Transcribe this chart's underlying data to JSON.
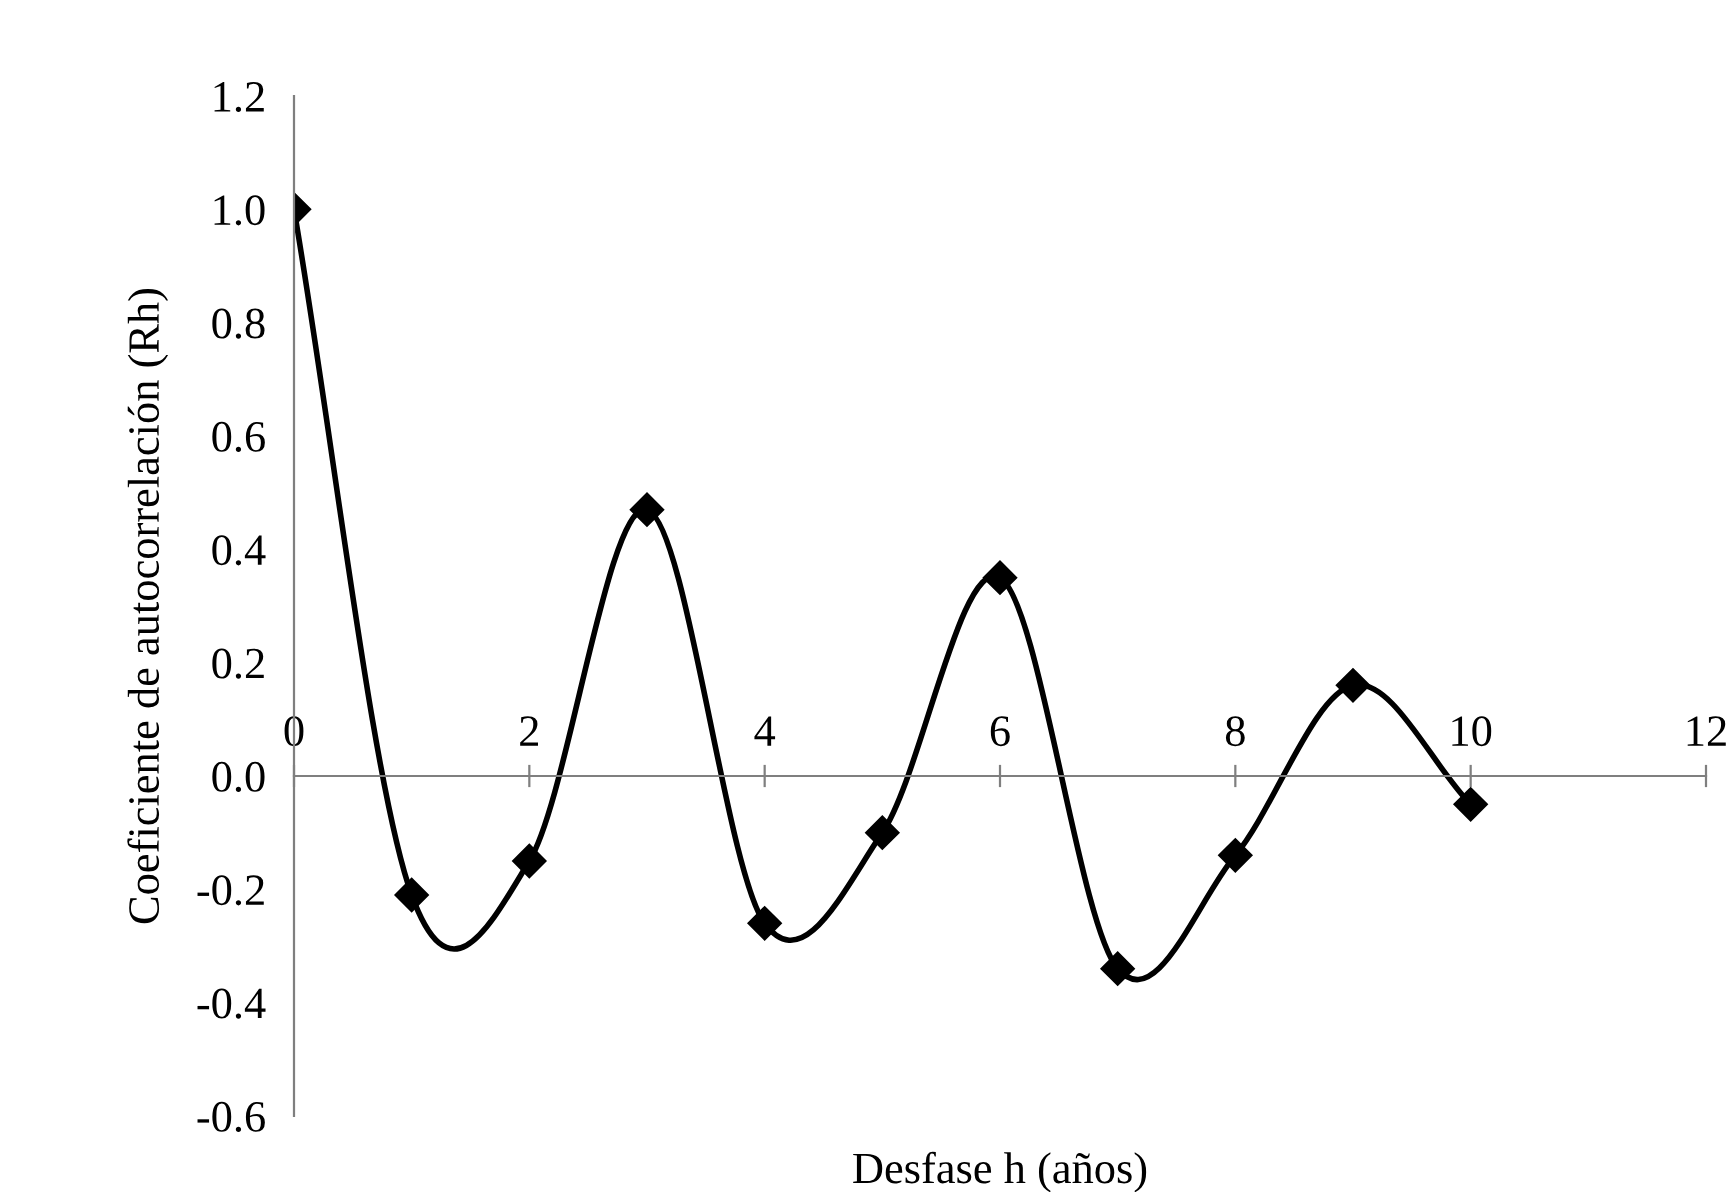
{
  "chart_data": {
    "type": "line",
    "xlabel": "Desfase h (años)",
    "ylabel": "Coeficiente de autocorrelación (Rh)",
    "x": [
      0,
      1,
      2,
      3,
      4,
      5,
      6,
      7,
      8,
      9,
      10
    ],
    "series": [
      {
        "color": "#000000",
        "values": [
          1.0,
          -0.21,
          -0.15,
          0.47,
          -0.26,
          -0.1,
          0.35,
          -0.34,
          -0.14,
          0.16,
          -0.05
        ]
      }
    ],
    "xlim": [
      0,
      12
    ],
    "xticks": [
      0,
      2,
      4,
      6,
      8,
      10,
      12
    ],
    "ylim": [
      -0.6,
      1.2
    ],
    "yticks": [
      {
        "value": -0.6,
        "label": "-0.6"
      },
      {
        "value": -0.4,
        "label": "-0.4"
      },
      {
        "value": -0.2,
        "label": "-0.2"
      },
      {
        "value": 0.0,
        "label": "0.0"
      },
      {
        "value": 0.2,
        "label": "0.2"
      },
      {
        "value": 0.4,
        "label": "0.4"
      },
      {
        "value": 0.6,
        "label": "0.6"
      },
      {
        "value": 0.8,
        "label": "0.8"
      },
      {
        "value": 1.0,
        "label": "1.0"
      },
      {
        "value": 1.2,
        "label": "1.2"
      }
    ],
    "marker": "diamond",
    "line_style": "solid",
    "grid": false,
    "legend": false
  }
}
